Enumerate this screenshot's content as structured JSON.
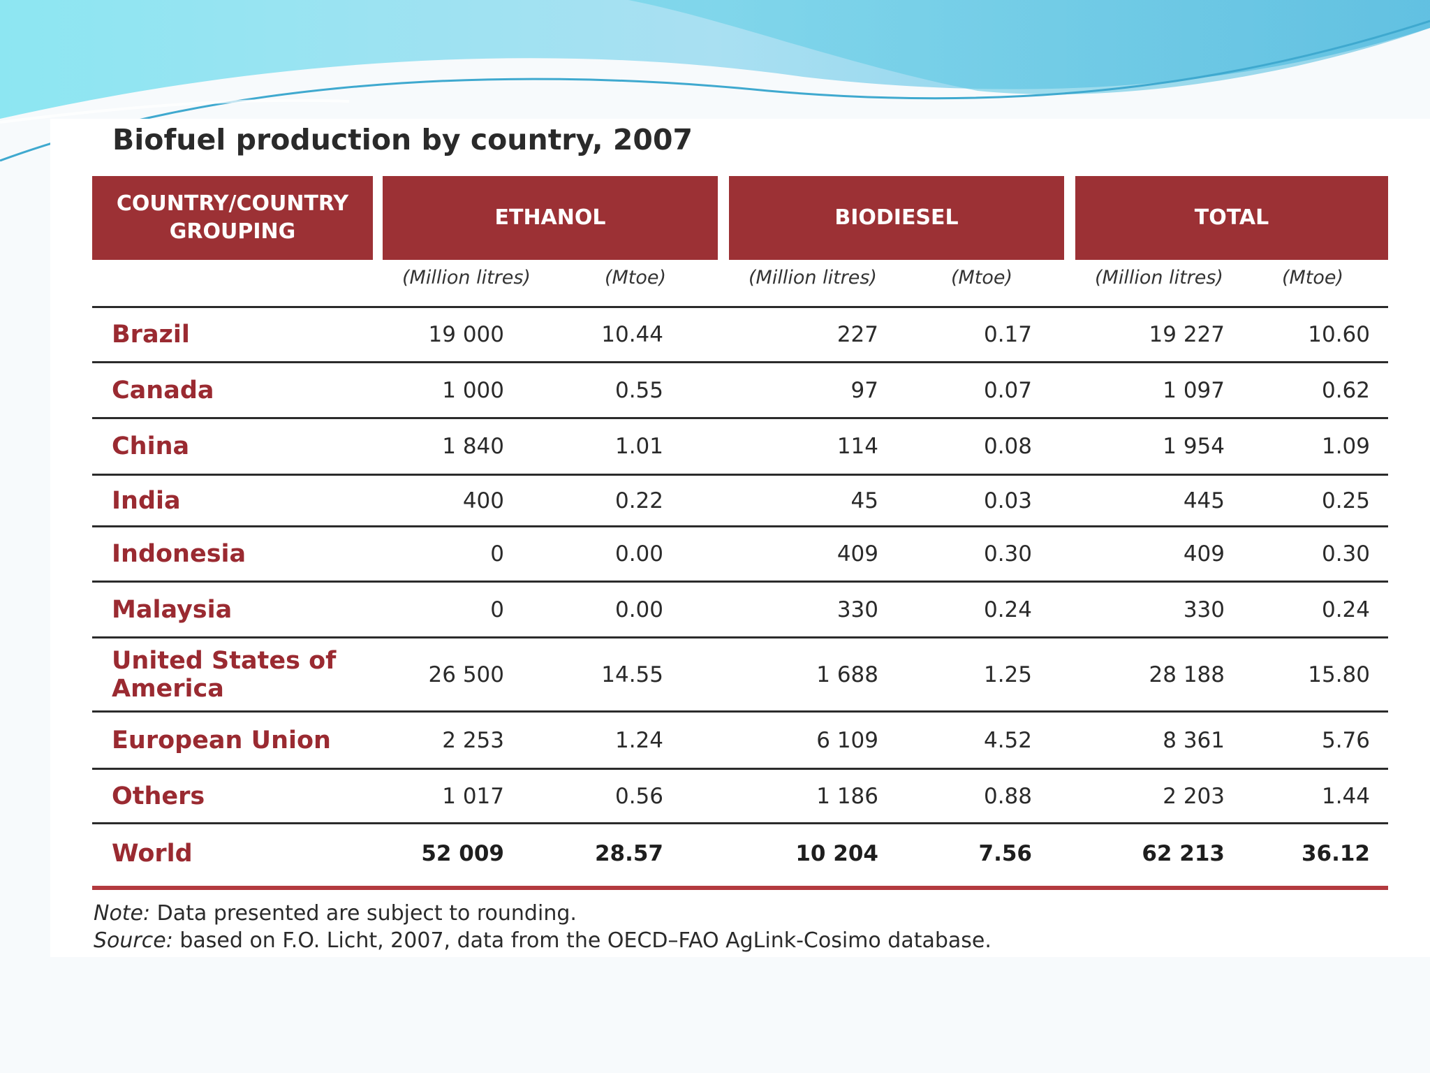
{
  "slide": {
    "title": "Biofuel production by country, 2007"
  },
  "table": {
    "headers": {
      "country": "COUNTRY/COUNTRY GROUPING",
      "ethanol": "ETHANOL",
      "biodiesel": "BIODIESEL",
      "total": "TOTAL"
    },
    "subheaders": [
      "(Million litres)",
      "(Mtoe)",
      "(Million litres)",
      "(Mtoe)",
      "(Million litres)",
      "(Mtoe)"
    ],
    "rows": [
      {
        "country": "Brazil",
        "values": [
          "19 000",
          "10.44",
          "227",
          "0.17",
          "19 227",
          "10.60"
        ]
      },
      {
        "country": "Canada",
        "values": [
          "1 000",
          "0.55",
          "97",
          "0.07",
          "1 097",
          "0.62"
        ]
      },
      {
        "country": "China",
        "values": [
          "1 840",
          "1.01",
          "114",
          "0.08",
          "1 954",
          "1.09"
        ]
      },
      {
        "country": "India",
        "values": [
          "400",
          "0.22",
          "45",
          "0.03",
          "445",
          "0.25"
        ]
      },
      {
        "country": "Indonesia",
        "values": [
          "0",
          "0.00",
          "409",
          "0.30",
          "409",
          "0.30"
        ]
      },
      {
        "country": "Malaysia",
        "values": [
          "0",
          "0.00",
          "330",
          "0.24",
          "330",
          "0.24"
        ]
      },
      {
        "country": "United States of America",
        "values": [
          "26 500",
          "14.55",
          "1 688",
          "1.25",
          "28 188",
          "15.80"
        ]
      },
      {
        "country": "European Union",
        "values": [
          "2 253",
          "1.24",
          "6 109",
          "4.52",
          "8 361",
          "5.76"
        ]
      },
      {
        "country": "Others",
        "values": [
          "1 017",
          "0.56",
          "1 186",
          "0.88",
          "2 203",
          "1.44"
        ]
      },
      {
        "country": "World",
        "values": [
          "52 009",
          "28.57",
          "10 204",
          "7.56",
          "62 213",
          "36.12"
        ]
      }
    ]
  },
  "notes": {
    "note_label": "Note:",
    "note_text": " Data presented are subject to rounding.",
    "source_label": "Source:",
    "source_text": " based on F.O. Licht, 2007, data from the OECD–FAO AgLink-Cosimo database."
  },
  "colors": {
    "header_fill": "#9c3135",
    "country_text": "#9a2a31",
    "final_rule": "#b33a3f",
    "swoosh_light": "#a9e6f0",
    "swoosh_dark": "#5cc0dd"
  }
}
